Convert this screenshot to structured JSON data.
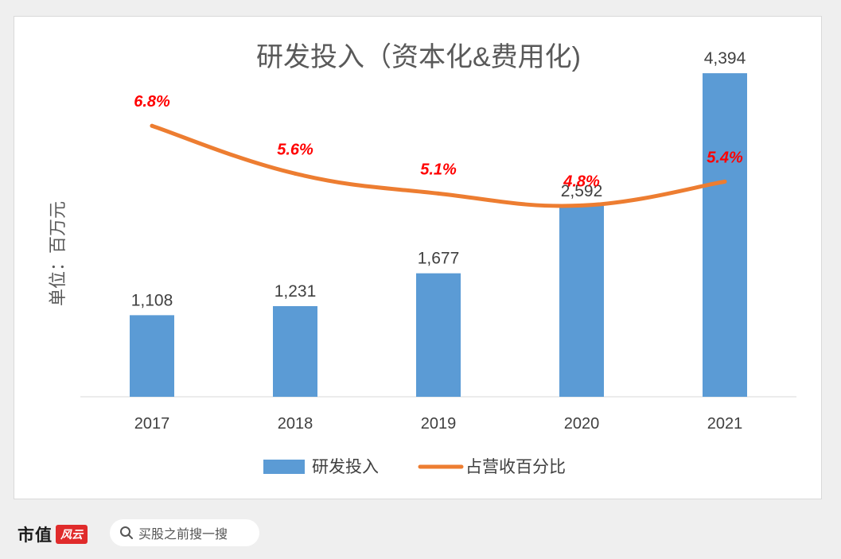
{
  "chart_data": {
    "type": "bar",
    "title": "研发投入（资本化&费用化)",
    "ylabel": "单位：百万元",
    "categories": [
      "2017",
      "2018",
      "2019",
      "2020",
      "2021"
    ],
    "series": [
      {
        "name": "研发投入",
        "kind": "bar",
        "values": [
          1108,
          1231,
          1677,
          2592,
          4394
        ],
        "labels": [
          "1,108",
          "1,231",
          "1,677",
          "2,592",
          "4,394"
        ],
        "color": "#5b9bd5"
      },
      {
        "name": "占营收百分比",
        "kind": "line",
        "values": [
          6.8,
          5.6,
          5.1,
          4.8,
          5.4
        ],
        "labels": [
          "6.8%",
          "5.6%",
          "5.1%",
          "4.8%",
          "5.4%"
        ],
        "color": "#ed7d31",
        "label_color": "#ff0000"
      }
    ],
    "ylim_left": [
      0,
      4600
    ],
    "ylim_right": [
      0,
      8.5
    ],
    "grid": false,
    "legend": "bottom"
  },
  "footer": {
    "brand": "市值",
    "brand_mark": "风云",
    "search_text": "买股之前搜一搜"
  }
}
